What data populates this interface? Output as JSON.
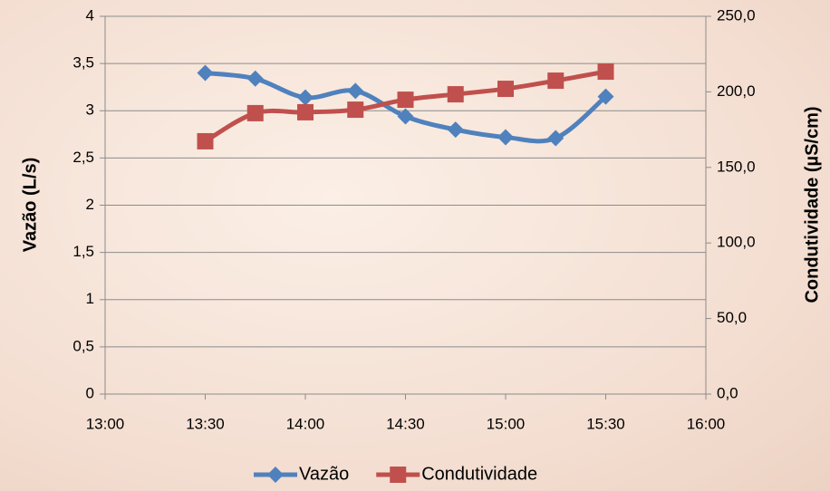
{
  "chart_data": {
    "type": "line",
    "ylabel": "Vazão (L/s)",
    "y2label": "Condutividade (µS/cm)",
    "x": [
      13.5,
      13.75,
      14,
      14.25,
      14.5,
      14.75,
      15,
      15.25,
      15.5
    ],
    "xlim": [
      13,
      16
    ],
    "xticks": [
      {
        "value": 13,
        "label": "13:00"
      },
      {
        "value": 13.5,
        "label": "13:30"
      },
      {
        "value": 14,
        "label": "14:00"
      },
      {
        "value": 14.5,
        "label": "14:30"
      },
      {
        "value": 15,
        "label": "15:00"
      },
      {
        "value": 15.5,
        "label": "15:30"
      },
      {
        "value": 16,
        "label": "16:00"
      }
    ],
    "ylim": [
      0,
      4
    ],
    "yticks": [
      0,
      {
        "value": 0.5,
        "label": "0,5"
      },
      1,
      {
        "value": 1.5,
        "label": "1,5"
      },
      2,
      {
        "value": 2.5,
        "label": "2,5"
      },
      3,
      {
        "value": 3.5,
        "label": "3,5"
      },
      4
    ],
    "y2lim": [
      0,
      250
    ],
    "y2ticks": [
      {
        "value": 0,
        "label": "0,0"
      },
      {
        "value": 50,
        "label": "50,0"
      },
      {
        "value": 100,
        "label": "100,0"
      },
      {
        "value": 150,
        "label": "150,0"
      },
      {
        "value": 200,
        "label": "200,0"
      },
      {
        "value": 250,
        "label": "250,0"
      }
    ],
    "grid": true,
    "legend": "bottom",
    "series": [
      {
        "name": "Vazão",
        "color": "#4f81bd",
        "marker": "diamond",
        "values": [
          3.4,
          3.34,
          3.14,
          3.21,
          2.94,
          2.8,
          2.72,
          2.71,
          3.15
        ]
      },
      {
        "name": "Condutividade",
        "color": "#c0504d",
        "marker": "square",
        "axis": "y2",
        "values": [
          167.3,
          185.9,
          186.5,
          188.2,
          194.8,
          198.4,
          202.0,
          207.4,
          213.4
        ]
      }
    ]
  }
}
